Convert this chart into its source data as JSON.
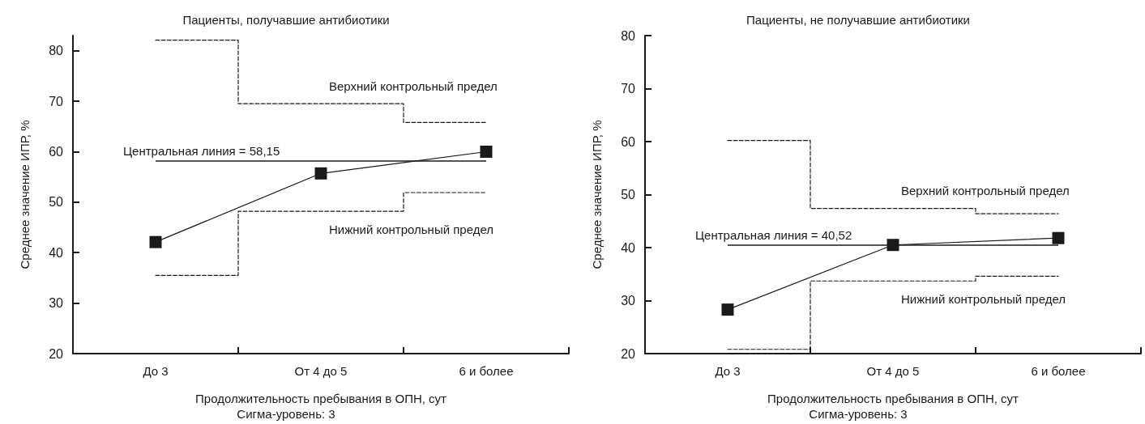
{
  "chart_data": [
    {
      "type": "line",
      "title": "Пациенты, получавшие антибиотики",
      "xlabel": "Продолжительность пребывания в ОПН, сут",
      "ylabel": "Среднее значение ИПР, %",
      "categories": [
        "До 3",
        "От 4 до 5",
        "6 и более"
      ],
      "series": [
        {
          "type": "step",
          "color": "#1a1a1a",
          "values": [
            82.1,
            69.5,
            65.8
          ],
          "marker": "none",
          "line_style": "dashed"
        },
        {
          "type": "step",
          "color": "#1a1a1a",
          "values": [
            35.5,
            48.2,
            51.9
          ],
          "marker": "none",
          "line_style": "dashed"
        },
        {
          "type": "line",
          "color": "#1a1a1a",
          "values": [
            42.1,
            55.7,
            60.0
          ],
          "marker": "square",
          "line_style": "solid"
        }
      ],
      "ylim": [
        20,
        83
      ],
      "yticks": [
        20,
        30,
        40,
        50,
        60,
        70,
        80
      ],
      "ref_lines": [
        {
          "axis": "y",
          "value": 58.15,
          "label": "Центральная линия = 58,15",
          "color": "#1a1a1a",
          "line_style": "solid"
        }
      ],
      "annotations": [
        "Верхний контрольный предел",
        "Нижний контрольный предел",
        "Сигма-уровень: 3"
      ]
    },
    {
      "type": "line",
      "title": "Пациенты, не получавшие антибиотики",
      "xlabel": "Продолжительность пребывания в ОПН, сут",
      "ylabel": "Среднее значение ИПР, %",
      "categories": [
        "До 3",
        "От 4 до 5",
        "6 и более"
      ],
      "series": [
        {
          "type": "step",
          "color": "#1a1a1a",
          "values": [
            60.2,
            47.4,
            46.4
          ],
          "marker": "none",
          "line_style": "dashed"
        },
        {
          "type": "step",
          "color": "#1a1a1a",
          "values": [
            20.8,
            33.7,
            34.6
          ],
          "marker": "none",
          "line_style": "dashed"
        },
        {
          "type": "line",
          "color": "#1a1a1a",
          "values": [
            28.3,
            40.5,
            41.8
          ],
          "marker": "square",
          "line_style": "solid"
        }
      ],
      "ylim": [
        20,
        80
      ],
      "yticks": [
        20,
        30,
        40,
        50,
        60,
        70,
        80
      ],
      "ref_lines": [
        {
          "axis": "y",
          "value": 40.52,
          "label": "Центральная линия = 40,52",
          "color": "#1a1a1a",
          "line_style": "solid"
        }
      ],
      "annotations": [
        "Верхний контрольный предел",
        "Нижний контрольный предел",
        "Сигма-уровень: 3"
      ]
    }
  ]
}
